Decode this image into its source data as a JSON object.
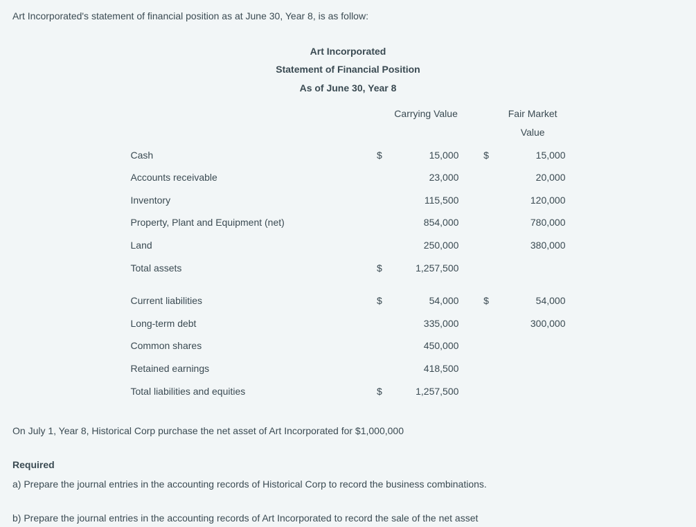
{
  "intro": "Art Incorporated's statement of financial position as at June 30, Year 8, is as follow:",
  "header": {
    "company": "Art Incorporated",
    "title": "Statement of Financial Position",
    "asof": "As of June 30, Year 8"
  },
  "colhead": {
    "carrying": "Carrying Value",
    "fair": "Fair Market Value"
  },
  "rows": {
    "cash": {
      "label": "Cash",
      "cv_sym": "$",
      "cv": "15,000",
      "fv_sym": "$",
      "fv": "15,000"
    },
    "ar": {
      "label": "Accounts receivable",
      "cv_sym": "",
      "cv": "23,000",
      "fv_sym": "",
      "fv": "20,000"
    },
    "inv": {
      "label": "Inventory",
      "cv_sym": "",
      "cv": "115,500",
      "fv_sym": "",
      "fv": "120,000"
    },
    "ppe": {
      "label": "Property, Plant and Equipment (net)",
      "cv_sym": "",
      "cv": "854,000",
      "fv_sym": "",
      "fv": "780,000"
    },
    "land": {
      "label": "Land",
      "cv_sym": "",
      "cv": "250,000",
      "fv_sym": "",
      "fv": "380,000"
    },
    "tassets": {
      "label": "Total assets",
      "cv_sym": "$",
      "cv": "1,257,500",
      "fv_sym": "",
      "fv": ""
    },
    "curliab": {
      "label": "Current liabilities",
      "cv_sym": "$",
      "cv": "54,000",
      "fv_sym": "$",
      "fv": "54,000"
    },
    "ltd": {
      "label": "Long-term debt",
      "cv_sym": "",
      "cv": "335,000",
      "fv_sym": "",
      "fv": "300,000"
    },
    "cs": {
      "label": "Common shares",
      "cv_sym": "",
      "cv": "450,000",
      "fv_sym": "",
      "fv": ""
    },
    "re": {
      "label": "Retained earnings",
      "cv_sym": "",
      "cv": "418,500",
      "fv_sym": "",
      "fv": ""
    },
    "tle": {
      "label": "Total liabilities and equities",
      "cv_sym": "$",
      "cv": "1,257,500",
      "fv_sym": "",
      "fv": ""
    }
  },
  "purchase": "On July 1, Year 8, Historical Corp purchase the net asset of Art Incorporated for $1,000,000",
  "required": "Required",
  "req_a": "a) Prepare the journal entries in the accounting records of Historical Corp to record the business combinations.",
  "req_b": "b) Prepare the journal entries in the accounting records of Art Incorporated to record the sale of the net asset"
}
